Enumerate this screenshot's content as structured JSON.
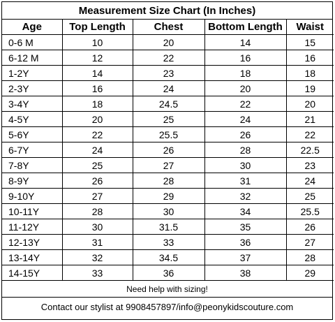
{
  "title": "Measurement Size Chart (In Inches)",
  "columns": [
    "Age",
    "Top Length",
    "Chest",
    "Bottom Length",
    "Waist"
  ],
  "rows": [
    [
      "0-6 M",
      "10",
      "20",
      "14",
      "15"
    ],
    [
      "6-12 M",
      "12",
      "22",
      "16",
      "16"
    ],
    [
      "1-2Y",
      "14",
      "23",
      "18",
      "18"
    ],
    [
      "2-3Y",
      "16",
      "24",
      "20",
      "19"
    ],
    [
      "3-4Y",
      "18",
      "24.5",
      "22",
      "20"
    ],
    [
      "4-5Y",
      "20",
      "25",
      "24",
      "21"
    ],
    [
      "5-6Y",
      "22",
      "25.5",
      "26",
      "22"
    ],
    [
      "6-7Y",
      "24",
      "26",
      "28",
      "22.5"
    ],
    [
      "7-8Y",
      "25",
      "27",
      "30",
      "23"
    ],
    [
      "8-9Y",
      "26",
      "28",
      "31",
      "24"
    ],
    [
      "9-10Y",
      "27",
      "29",
      "32",
      "25"
    ],
    [
      "10-11Y",
      "28",
      "30",
      "34",
      "25.5"
    ],
    [
      "11-12Y",
      "30",
      "31.5",
      "35",
      "26"
    ],
    [
      "12-13Y",
      "31",
      "33",
      "36",
      "27"
    ],
    [
      "13-14Y",
      "32",
      "34.5",
      "37",
      "28"
    ],
    [
      "14-15Y",
      "33",
      "36",
      "38",
      "29"
    ]
  ],
  "footer": {
    "help": "Need help with sizing!",
    "contact": "Contact our stylist at 9908457897/info@peonykidscouture.com"
  }
}
